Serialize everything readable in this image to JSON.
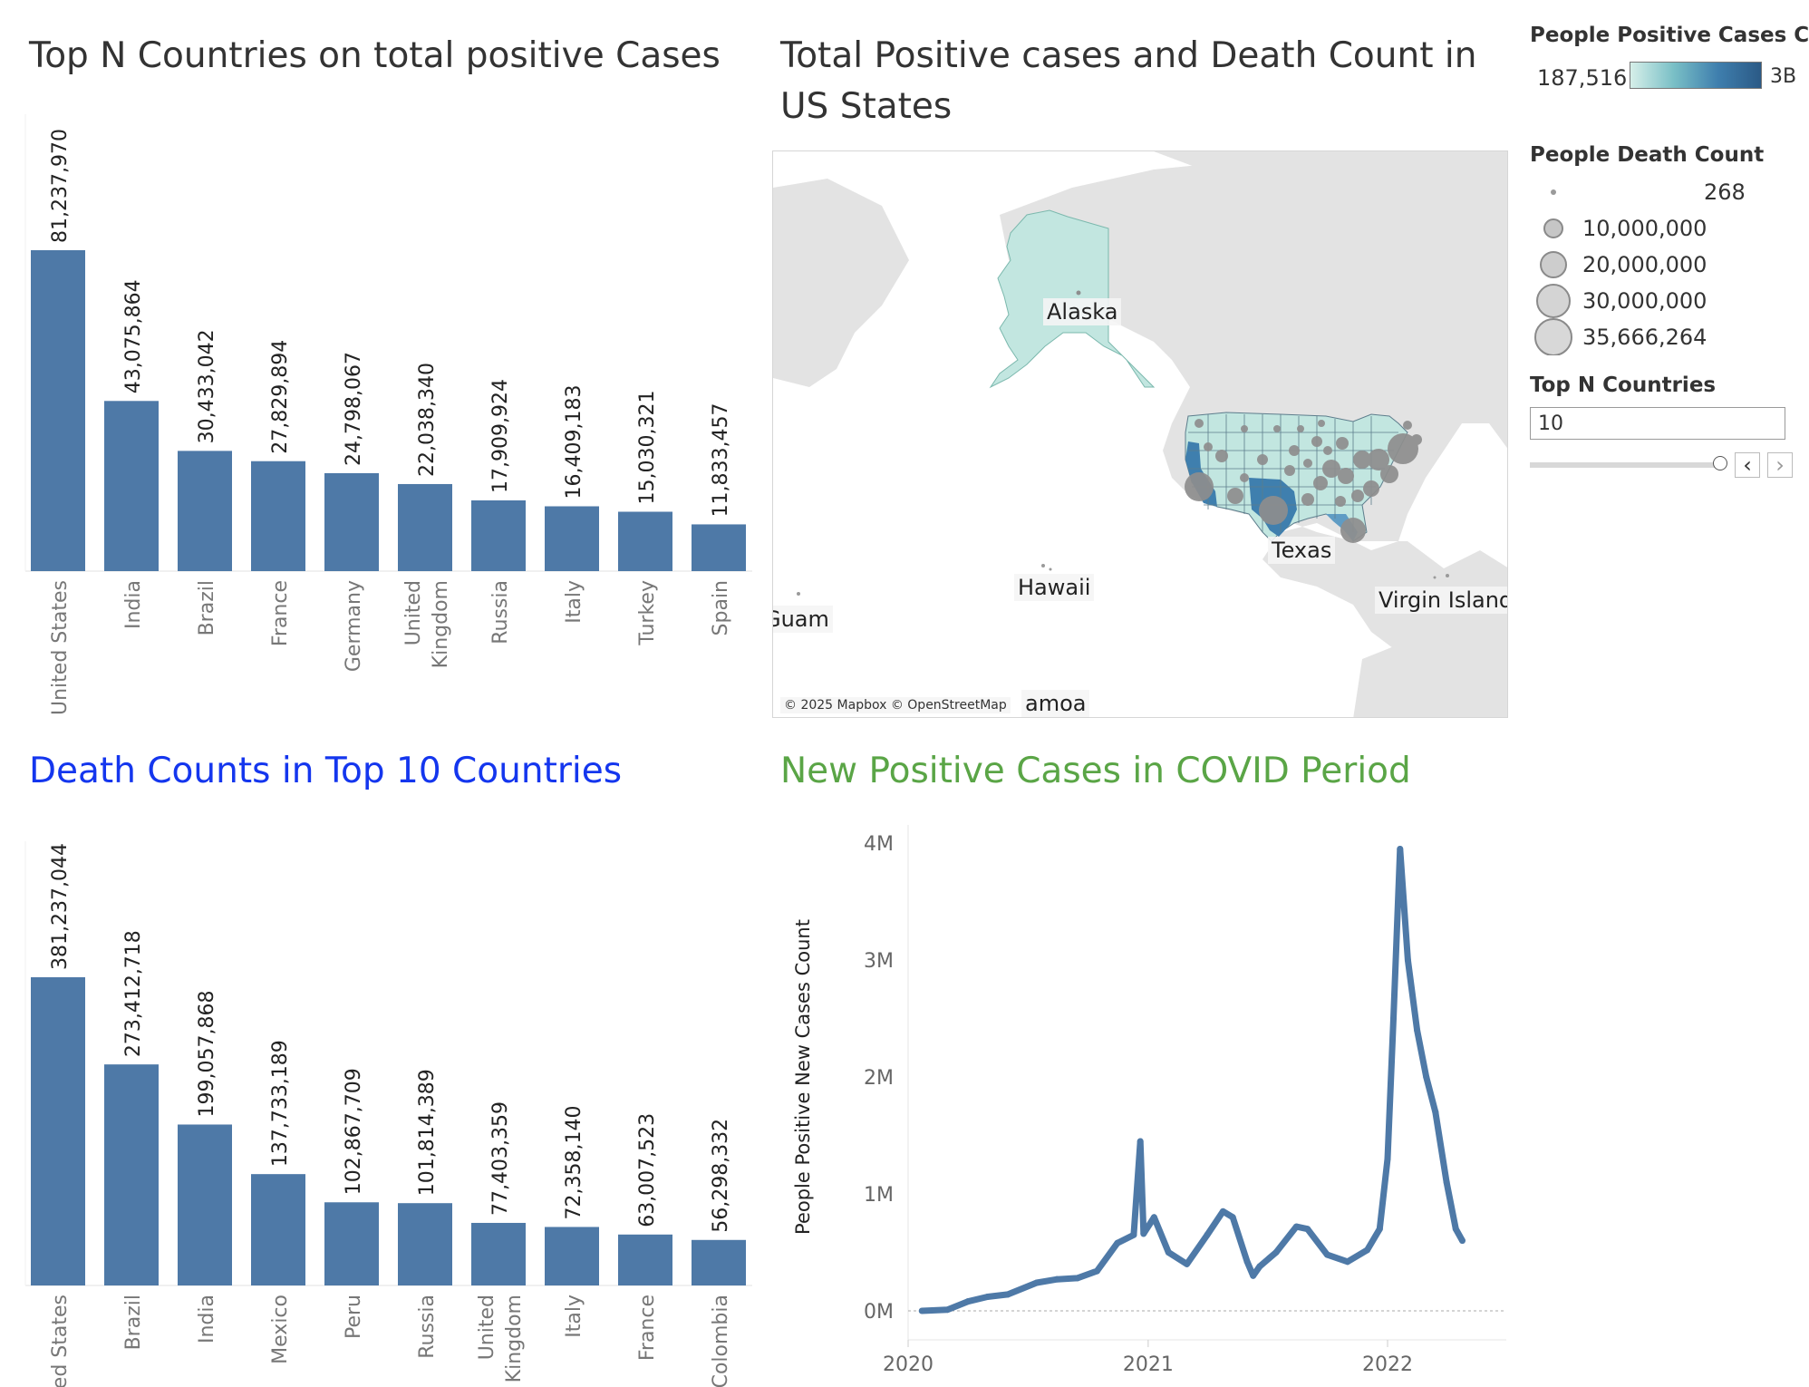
{
  "colors": {
    "bar": "#4e79a7",
    "line": "#4e79a7",
    "blue_title": "#1436ee",
    "green_title": "#5aa546",
    "land": "#e3e3e3",
    "state_fill": "#c2e6e0",
    "state_dark": "#3f7fae",
    "bubble": "#8e8e8e"
  },
  "titles": {
    "top_cases": "Top N Countries on total positive Cases",
    "map": "Total Positive cases and Death Count in US States",
    "deaths": "Death Counts in Top 10 Countries",
    "new_cases": "New Positive Cases in COVID Period"
  },
  "legend": {
    "positive_title": "People Positive Cases Co..",
    "positive_min": "187,516",
    "positive_max": "3B",
    "death_title": "People Death Count",
    "death_values": [
      "268",
      "10,000,000",
      "20,000,000",
      "30,000,000",
      "35,666,264"
    ],
    "topn_title": "Top N Countries",
    "topn_value": "10",
    "prev_symbol": "‹",
    "next_symbol": "›"
  },
  "map": {
    "labels": [
      "Alaska",
      "Texas",
      "Hawaii",
      "Virgin Island",
      "Guam",
      "amoa"
    ],
    "attribution": "© 2025 Mapbox © OpenStreetMap"
  },
  "chart_data": [
    {
      "type": "bar",
      "title": "Top N Countries on total positive Cases",
      "categories": [
        "United States",
        "India",
        "Brazil",
        "France",
        "Germany",
        "United Kingdom",
        "Russia",
        "Italy",
        "Turkey",
        "Spain"
      ],
      "values": [
        81237970,
        43075864,
        30433042,
        27829894,
        24798067,
        22038340,
        17909924,
        16409183,
        15030321,
        11833457
      ],
      "value_labels": [
        "81,237,970",
        "43,075,864",
        "30,433,042",
        "27,829,894",
        "24,798,067",
        "22,038,340",
        "17,909,924",
        "16,409,183",
        "15,030,321",
        "11,833,457"
      ]
    },
    {
      "type": "bar",
      "title": "Death Counts in Top 10 Countries",
      "categories": [
        "United States",
        "Brazil",
        "India",
        "Mexico",
        "Peru",
        "Russia",
        "United Kingdom",
        "Italy",
        "France",
        "Colombia"
      ],
      "values": [
        381237044,
        273412718,
        199057868,
        137733189,
        102867709,
        101814389,
        77403359,
        72358140,
        63007523,
        56298332
      ],
      "value_labels": [
        "381,237,044",
        "273,412,718",
        "199,057,868",
        "137,733,189",
        "102,867,709",
        "101,814,389",
        "77,403,359",
        "72,358,140",
        "63,007,523",
        "56,298,332"
      ]
    },
    {
      "type": "line",
      "title": "New Positive Cases in COVID Period",
      "ylabel": "People Positive New Cases Count",
      "yticks": [
        "0M",
        "1M",
        "2M",
        "3M",
        "4M"
      ],
      "ylim": [
        0,
        4000000
      ],
      "xticks": [
        "2020",
        "2021",
        "2022"
      ],
      "grid": false,
      "series": [
        {
          "x": [
            "2020-01-22",
            "2020-03-01",
            "2020-04-01",
            "2020-05-01",
            "2020-06-01",
            "2020-07-15",
            "2020-08-15",
            "2020-09-15",
            "2020-10-15",
            "2020-11-15",
            "2020-12-10",
            "2020-12-20",
            "2020-12-25",
            "2021-01-10",
            "2021-02-01",
            "2021-03-01",
            "2021-04-01",
            "2021-04-25",
            "2021-05-10",
            "2021-06-01",
            "2021-06-10",
            "2021-06-20",
            "2021-07-15",
            "2021-08-15",
            "2021-09-01",
            "2021-10-01",
            "2021-11-01",
            "2021-12-01",
            "2021-12-20",
            "2022-01-01",
            "2022-01-10",
            "2022-01-20",
            "2022-02-01",
            "2022-02-15",
            "2022-03-01",
            "2022-03-15",
            "2022-04-01",
            "2022-04-15",
            "2022-04-25"
          ],
          "y": [
            0,
            10000,
            80000,
            120000,
            140000,
            240000,
            270000,
            280000,
            340000,
            580000,
            650000,
            1450000,
            660000,
            800000,
            500000,
            400000,
            650000,
            850000,
            800000,
            420000,
            300000,
            380000,
            500000,
            720000,
            700000,
            480000,
            420000,
            520000,
            700000,
            1300000,
            2500000,
            3950000,
            3000000,
            2400000,
            2000000,
            1700000,
            1100000,
            700000,
            600000
          ]
        }
      ]
    }
  ]
}
